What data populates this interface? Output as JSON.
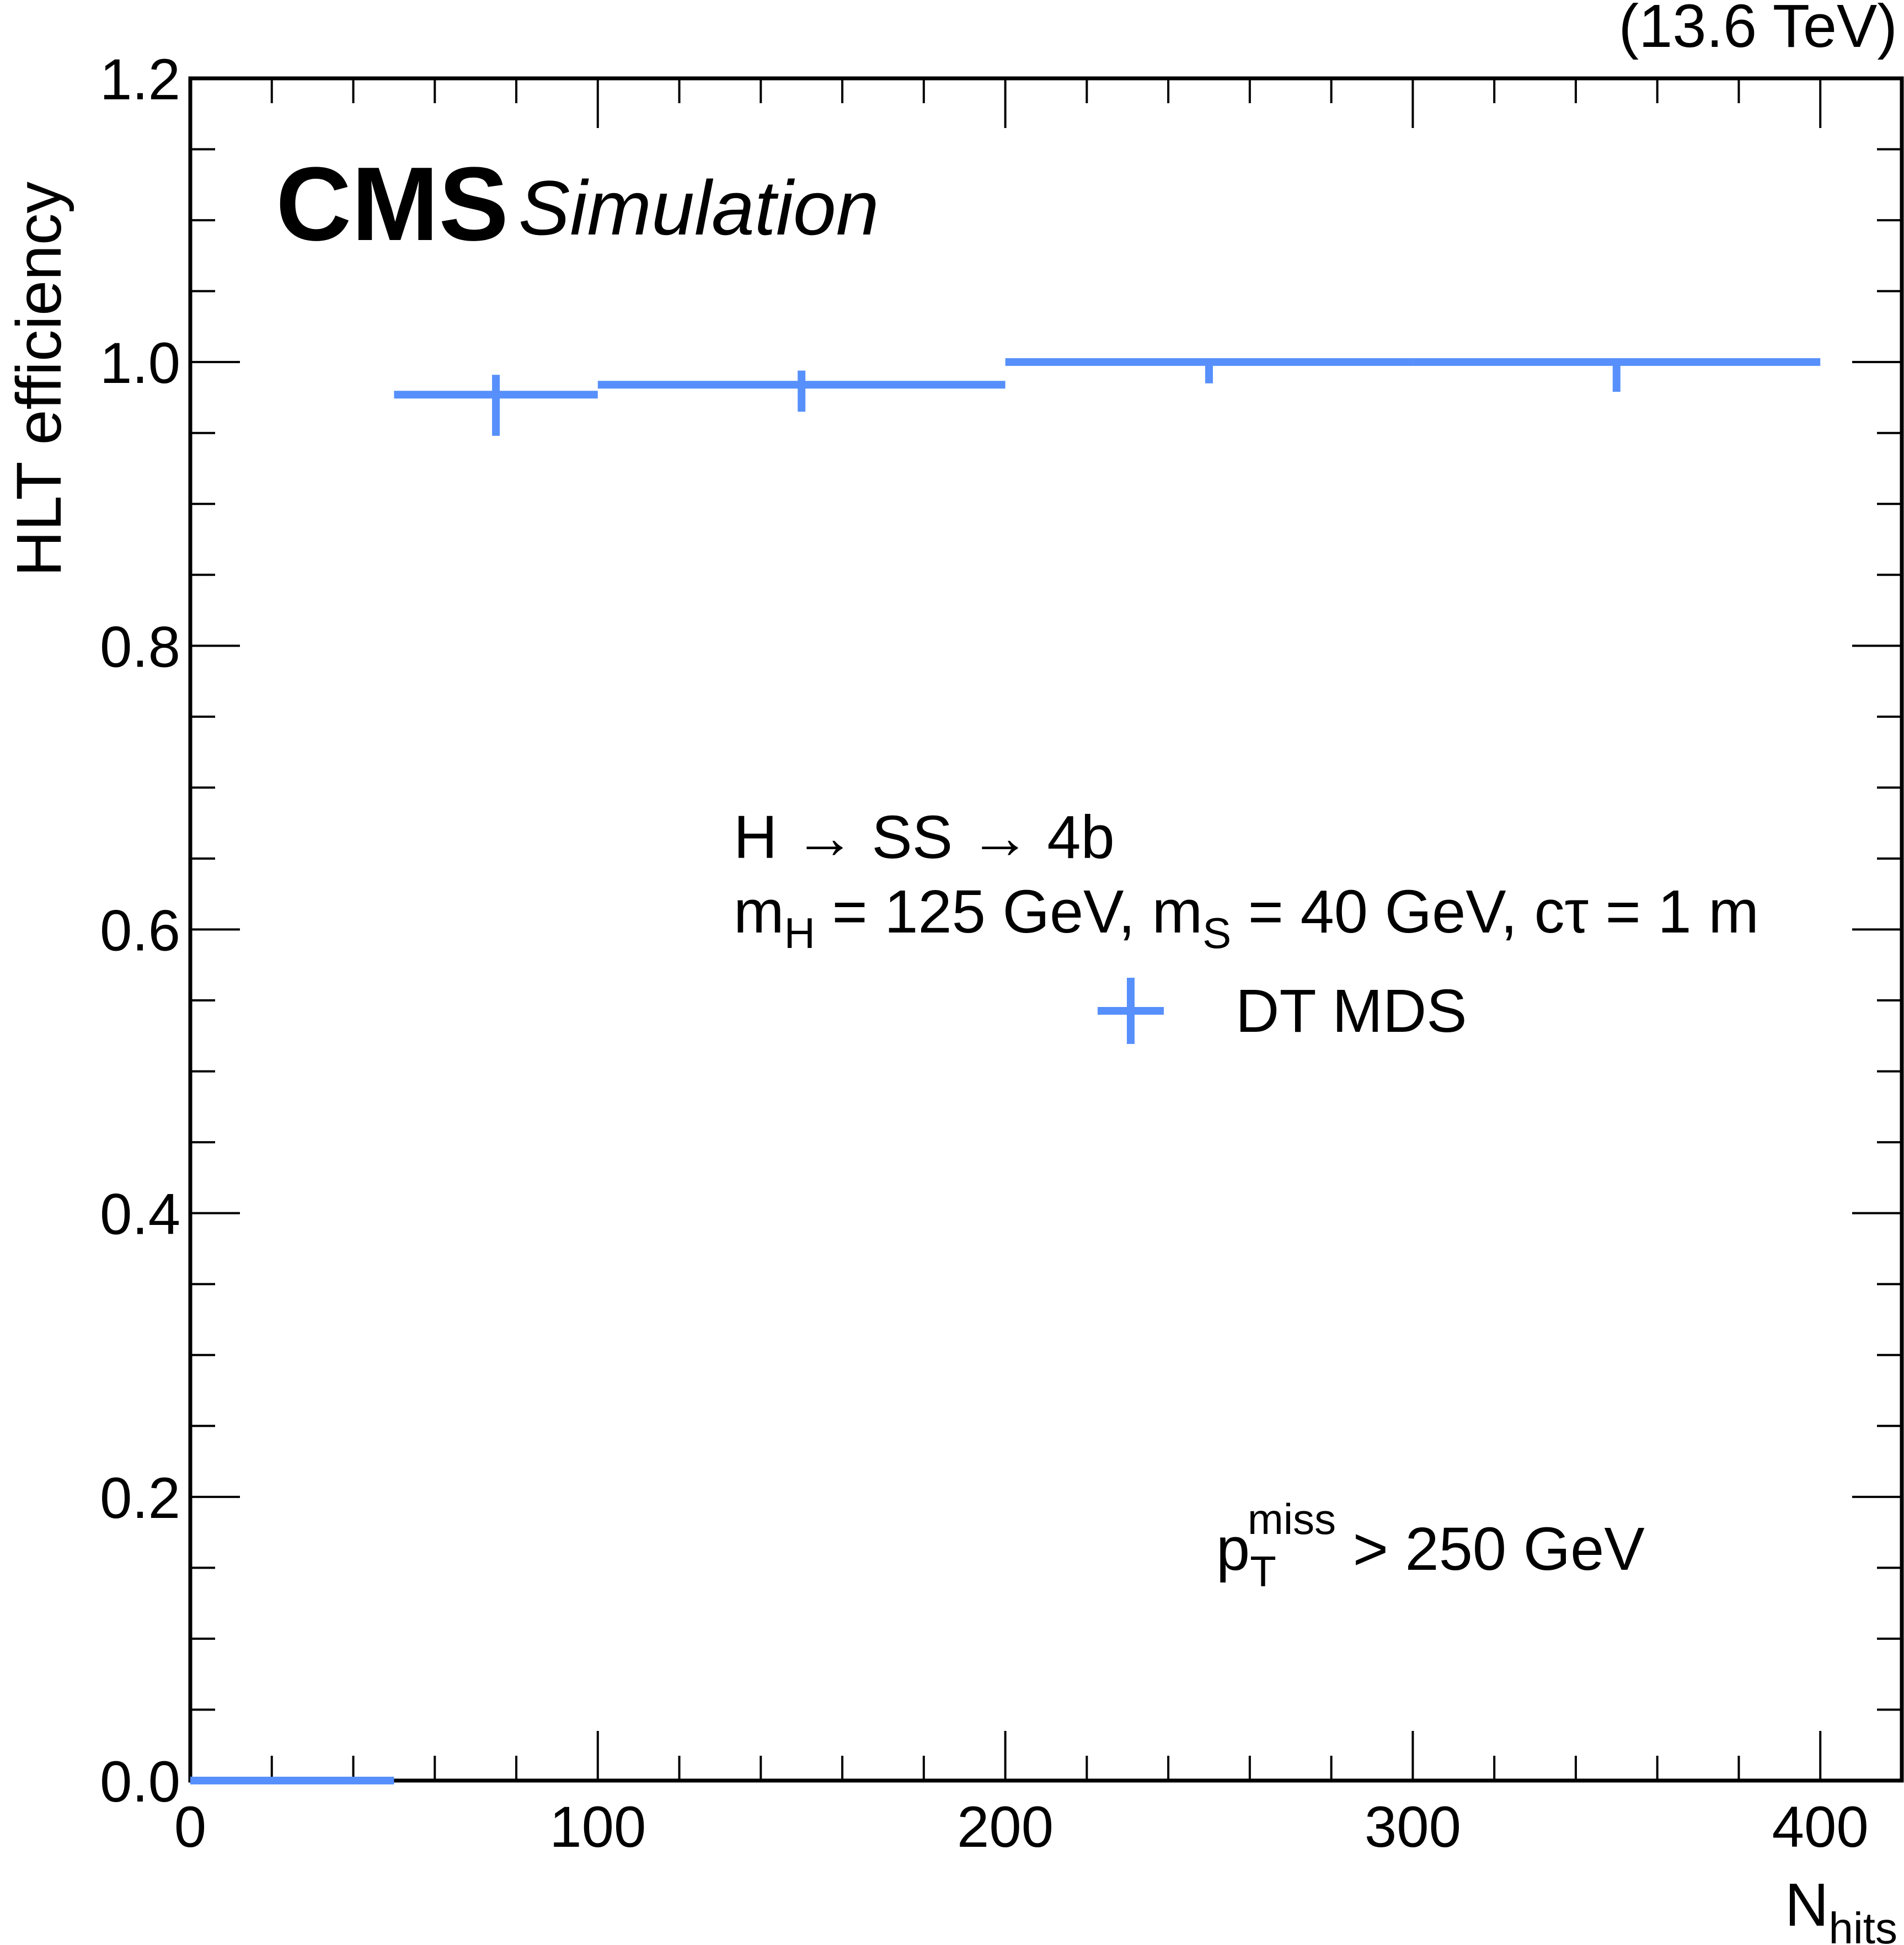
{
  "chart_data": {
    "type": "scatter",
    "title": "",
    "experiment": "CMS",
    "status_label": "Simulation",
    "energy_label": "(13.6 TeV)",
    "xlabel": "N",
    "xlabel_sub": "hits",
    "ylabel": "HLT efficiency",
    "xlim": [
      0,
      420
    ],
    "ylim": [
      0,
      1.2
    ],
    "x_ticks": [
      0,
      100,
      200,
      300,
      400
    ],
    "x_tick_labels": [
      "0",
      "100",
      "200",
      "300",
      "400"
    ],
    "y_ticks": [
      0,
      0.2,
      0.4,
      0.6,
      0.8,
      1.0,
      1.2
    ],
    "y_tick_labels": [
      "0.0",
      "0.2",
      "0.4",
      "0.6",
      "0.8",
      "1.0",
      "1.2"
    ],
    "grid": false,
    "annotations": {
      "process": "H → SS → 4b",
      "mass_line": {
        "m1": "m",
        "m1_sub": "H",
        "m1_rest": " = 125 GeV, ",
        "m2": "m",
        "m2_sub": "S",
        "m2_rest": " = 40 GeV, cτ = 1 m"
      },
      "cut": {
        "p": "p",
        "p_sub": "T",
        "p_sup": "miss",
        "rest": " > 250 GeV"
      }
    },
    "series": [
      {
        "name": "DT MDS",
        "color": "#5790fc",
        "points": [
          {
            "x": 25,
            "x_low": 0,
            "x_high": 50,
            "y": 0.0,
            "y_err_low": 0.0,
            "y_err_high": 0.0
          },
          {
            "x": 75,
            "x_low": 50,
            "x_high": 100,
            "y": 0.977,
            "y_err_low": 0.029,
            "y_err_high": 0.014
          },
          {
            "x": 150,
            "x_low": 100,
            "x_high": 200,
            "y": 0.984,
            "y_err_low": 0.019,
            "y_err_high": 0.01
          },
          {
            "x": 250,
            "x_low": 200,
            "x_high": 300,
            "y": 1.0,
            "y_err_low": 0.015,
            "y_err_high": 0.0
          },
          {
            "x": 350,
            "x_low": 300,
            "x_high": 400,
            "y": 1.0,
            "y_err_low": 0.021,
            "y_err_high": 0.0
          }
        ]
      }
    ],
    "legend": {
      "entries": [
        "DT MDS"
      ],
      "placement": "center-right"
    }
  }
}
